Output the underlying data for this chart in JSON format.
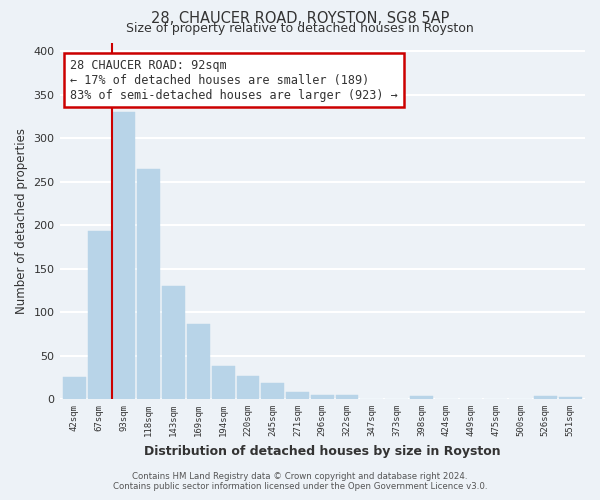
{
  "title1": "28, CHAUCER ROAD, ROYSTON, SG8 5AP",
  "title2": "Size of property relative to detached houses in Royston",
  "xlabel": "Distribution of detached houses by size in Royston",
  "ylabel": "Number of detached properties",
  "bar_labels": [
    "42sqm",
    "67sqm",
    "93sqm",
    "118sqm",
    "143sqm",
    "169sqm",
    "194sqm",
    "220sqm",
    "245sqm",
    "271sqm",
    "296sqm",
    "322sqm",
    "347sqm",
    "373sqm",
    "398sqm",
    "424sqm",
    "449sqm",
    "475sqm",
    "500sqm",
    "526sqm",
    "551sqm"
  ],
  "bar_values": [
    25,
    193,
    330,
    265,
    130,
    86,
    38,
    26,
    18,
    8,
    5,
    5,
    0,
    0,
    4,
    0,
    0,
    0,
    0,
    4,
    2
  ],
  "bar_color": "#b8d4e8",
  "vline_index": 2,
  "vline_color": "#cc0000",
  "ylim": [
    0,
    410
  ],
  "yticks": [
    0,
    50,
    100,
    150,
    200,
    250,
    300,
    350,
    400
  ],
  "annotation_title": "28 CHAUCER ROAD: 92sqm",
  "annotation_line1": "← 17% of detached houses are smaller (189)",
  "annotation_line2": "83% of semi-detached houses are larger (923) →",
  "annotation_box_color": "#ffffff",
  "annotation_box_edge": "#cc0000",
  "footer1": "Contains HM Land Registry data © Crown copyright and database right 2024.",
  "footer2": "Contains public sector information licensed under the Open Government Licence v3.0.",
  "bg_color": "#edf2f7",
  "grid_color": "#ffffff",
  "plot_bg_color": "#edf2f7"
}
